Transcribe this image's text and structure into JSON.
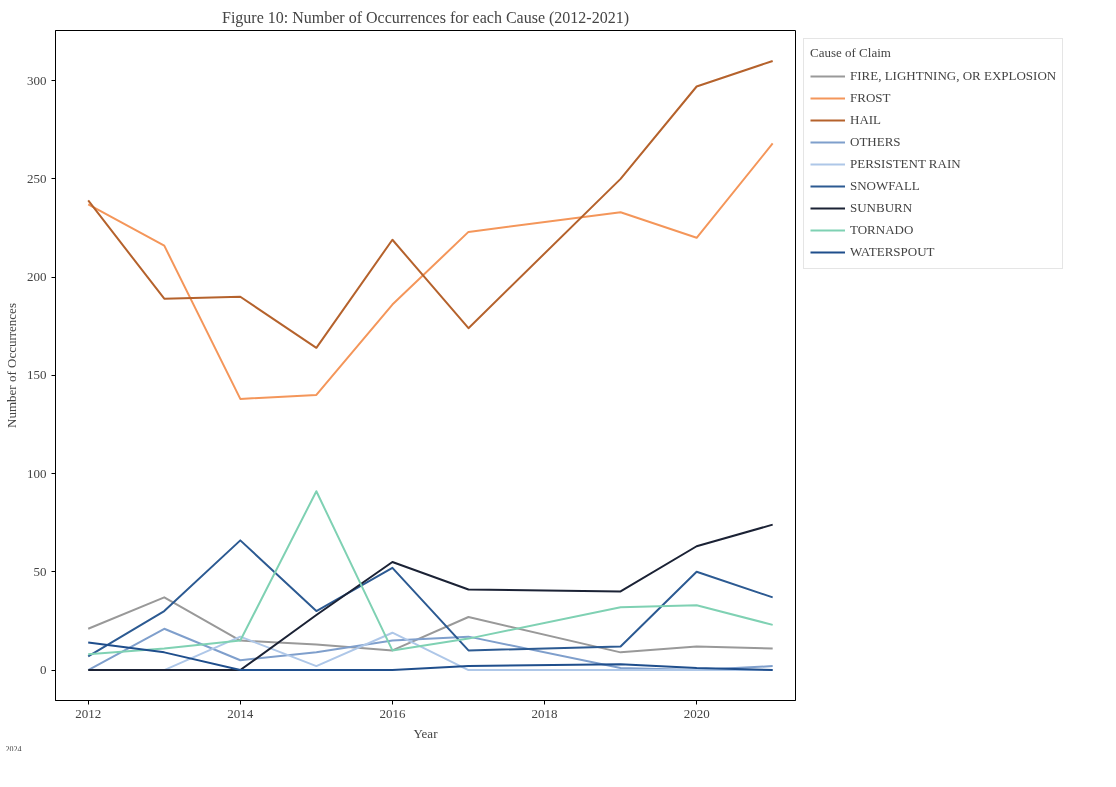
{
  "chart_data": {
    "type": "line",
    "title": "Figure 10: Number of Occurrences for each Cause (2012-2021)",
    "xlabel": "Year",
    "ylabel": "Number of Occurrences",
    "legend_title": "Cause of Claim",
    "x": [
      2012,
      2013,
      2014,
      2015,
      2016,
      2017,
      2019,
      2020,
      2021
    ],
    "series": [
      {
        "name": "FIRE, LIGHTNING, OR EXPLOSION",
        "color": "#999999",
        "values": [
          21,
          37,
          15,
          13,
          10,
          27,
          9,
          12,
          11
        ]
      },
      {
        "name": "FROST",
        "color": "#f4965a",
        "values": [
          237,
          216,
          138,
          140,
          186,
          223,
          233,
          220,
          268
        ]
      },
      {
        "name": "HAIL",
        "color": "#b5622c",
        "values": [
          239,
          189,
          190,
          164,
          219,
          174,
          250,
          297,
          310
        ]
      },
      {
        "name": "OTHERS",
        "color": "#7f9fcc",
        "values": [
          0,
          21,
          5,
          9,
          15,
          17,
          1,
          0,
          2
        ]
      },
      {
        "name": "PERSISTENT RAIN",
        "color": "#aec7e8",
        "values": [
          0,
          0,
          17,
          2,
          19,
          0,
          0,
          0,
          0
        ]
      },
      {
        "name": "SNOWFALL",
        "color": "#2c5a92",
        "values": [
          7,
          30,
          66,
          30,
          52,
          10,
          12,
          50,
          37
        ]
      },
      {
        "name": "SUNBURN",
        "color": "#1b2235",
        "values": [
          0,
          0,
          0,
          28,
          55,
          41,
          40,
          63,
          74
        ]
      },
      {
        "name": "TORNADO",
        "color": "#7fd1b3",
        "values": [
          8,
          11,
          15,
          91,
          10,
          16,
          32,
          33,
          23
        ]
      },
      {
        "name": "WATERSPOUT",
        "color": "#1f4e8c",
        "values": [
          14,
          9,
          0,
          0,
          0,
          2,
          3,
          1,
          0
        ]
      }
    ],
    "xlim": [
      2011.57,
      2021.3
    ],
    "xticks": [
      2012,
      2014,
      2016,
      2018,
      2020
    ],
    "ylim": [
      -15.5,
      325.5
    ],
    "yticks": [
      0,
      50,
      100,
      150,
      200,
      250,
      300
    ],
    "grid": false,
    "legend": "top right",
    "marker": "none",
    "line_style": "solid",
    "annotations": [
      "2024"
    ]
  }
}
